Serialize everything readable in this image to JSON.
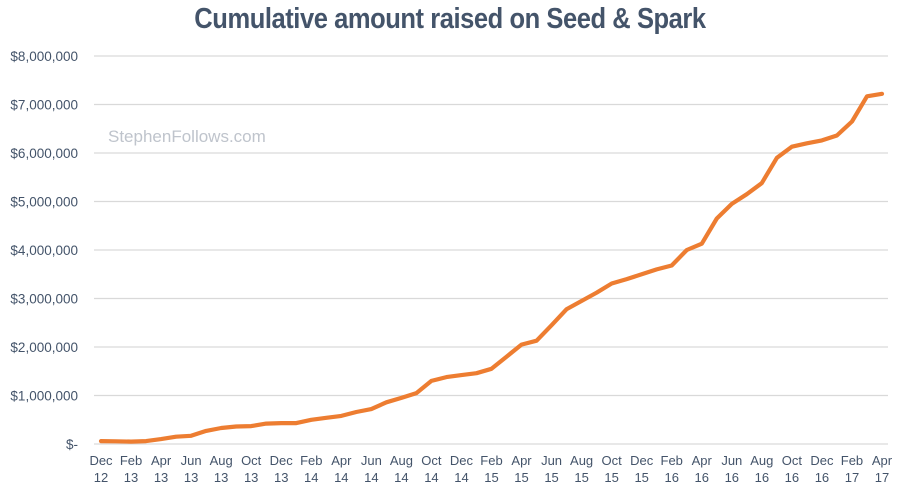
{
  "chart_data": {
    "type": "line",
    "title": "Cumulative amount raised on Seed & Spark",
    "watermark": "StephenFollows.com",
    "xlabel": "",
    "ylabel": "",
    "ylim": [
      0,
      8000000
    ],
    "yticks": [
      0,
      1000000,
      2000000,
      3000000,
      4000000,
      5000000,
      6000000,
      7000000,
      8000000
    ],
    "ytick_labels": [
      "$-",
      "$1,000,000",
      "$2,000,000",
      "$3,000,000",
      "$4,000,000",
      "$5,000,000",
      "$6,000,000",
      "$7,000,000",
      "$8,000,000"
    ],
    "grid": true,
    "legend": "none",
    "x_tick_labels": [
      [
        "Dec",
        "12"
      ],
      [
        "Feb",
        "13"
      ],
      [
        "Apr",
        "13"
      ],
      [
        "Jun",
        "13"
      ],
      [
        "Aug",
        "13"
      ],
      [
        "Oct",
        "13"
      ],
      [
        "Dec",
        "13"
      ],
      [
        "Feb",
        "14"
      ],
      [
        "Apr",
        "14"
      ],
      [
        "Jun",
        "14"
      ],
      [
        "Aug",
        "14"
      ],
      [
        "Oct",
        "14"
      ],
      [
        "Dec",
        "14"
      ],
      [
        "Feb",
        "15"
      ],
      [
        "Apr",
        "15"
      ],
      [
        "Jun",
        "15"
      ],
      [
        "Aug",
        "15"
      ],
      [
        "Oct",
        "15"
      ],
      [
        "Dec",
        "15"
      ],
      [
        "Feb",
        "16"
      ],
      [
        "Apr",
        "16"
      ],
      [
        "Jun",
        "16"
      ],
      [
        "Aug",
        "16"
      ],
      [
        "Oct",
        "16"
      ],
      [
        "Dec",
        "16"
      ],
      [
        "Feb",
        "17"
      ],
      [
        "Apr",
        "17"
      ]
    ],
    "x": [
      "Dec 12",
      "Jan 13",
      "Feb 13",
      "Mar 13",
      "Apr 13",
      "May 13",
      "Jun 13",
      "Jul 13",
      "Aug 13",
      "Sep 13",
      "Oct 13",
      "Nov 13",
      "Dec 13",
      "Jan 14",
      "Feb 14",
      "Mar 14",
      "Apr 14",
      "May 14",
      "Jun 14",
      "Jul 14",
      "Aug 14",
      "Sep 14",
      "Oct 14",
      "Nov 14",
      "Dec 14",
      "Jan 15",
      "Feb 15",
      "Mar 15",
      "Apr 15",
      "May 15",
      "Jun 15",
      "Jul 15",
      "Aug 15",
      "Sep 15",
      "Oct 15",
      "Nov 15",
      "Dec 15",
      "Jan 16",
      "Feb 16",
      "Mar 16",
      "Apr 16",
      "May 16",
      "Jun 16",
      "Jul 16",
      "Aug 16",
      "Sep 16",
      "Oct 16",
      "Nov 16",
      "Dec 16",
      "Jan 17",
      "Feb 17",
      "Mar 17",
      "Apr 17"
    ],
    "series": [
      {
        "name": "Cumulative amount raised",
        "color": "#ed7d31",
        "values": [
          60000,
          55000,
          50000,
          60000,
          100000,
          150000,
          170000,
          270000,
          330000,
          360000,
          370000,
          420000,
          430000,
          430000,
          500000,
          540000,
          580000,
          660000,
          720000,
          860000,
          950000,
          1050000,
          1300000,
          1380000,
          1420000,
          1460000,
          1550000,
          1800000,
          2050000,
          2130000,
          2450000,
          2780000,
          2950000,
          3120000,
          3310000,
          3400000,
          3500000,
          3600000,
          3680000,
          4000000,
          4130000,
          4650000,
          4950000,
          5150000,
          5380000,
          5900000,
          6130000,
          6200000,
          6260000,
          6360000,
          6650000,
          7170000,
          7220000
        ]
      }
    ]
  }
}
